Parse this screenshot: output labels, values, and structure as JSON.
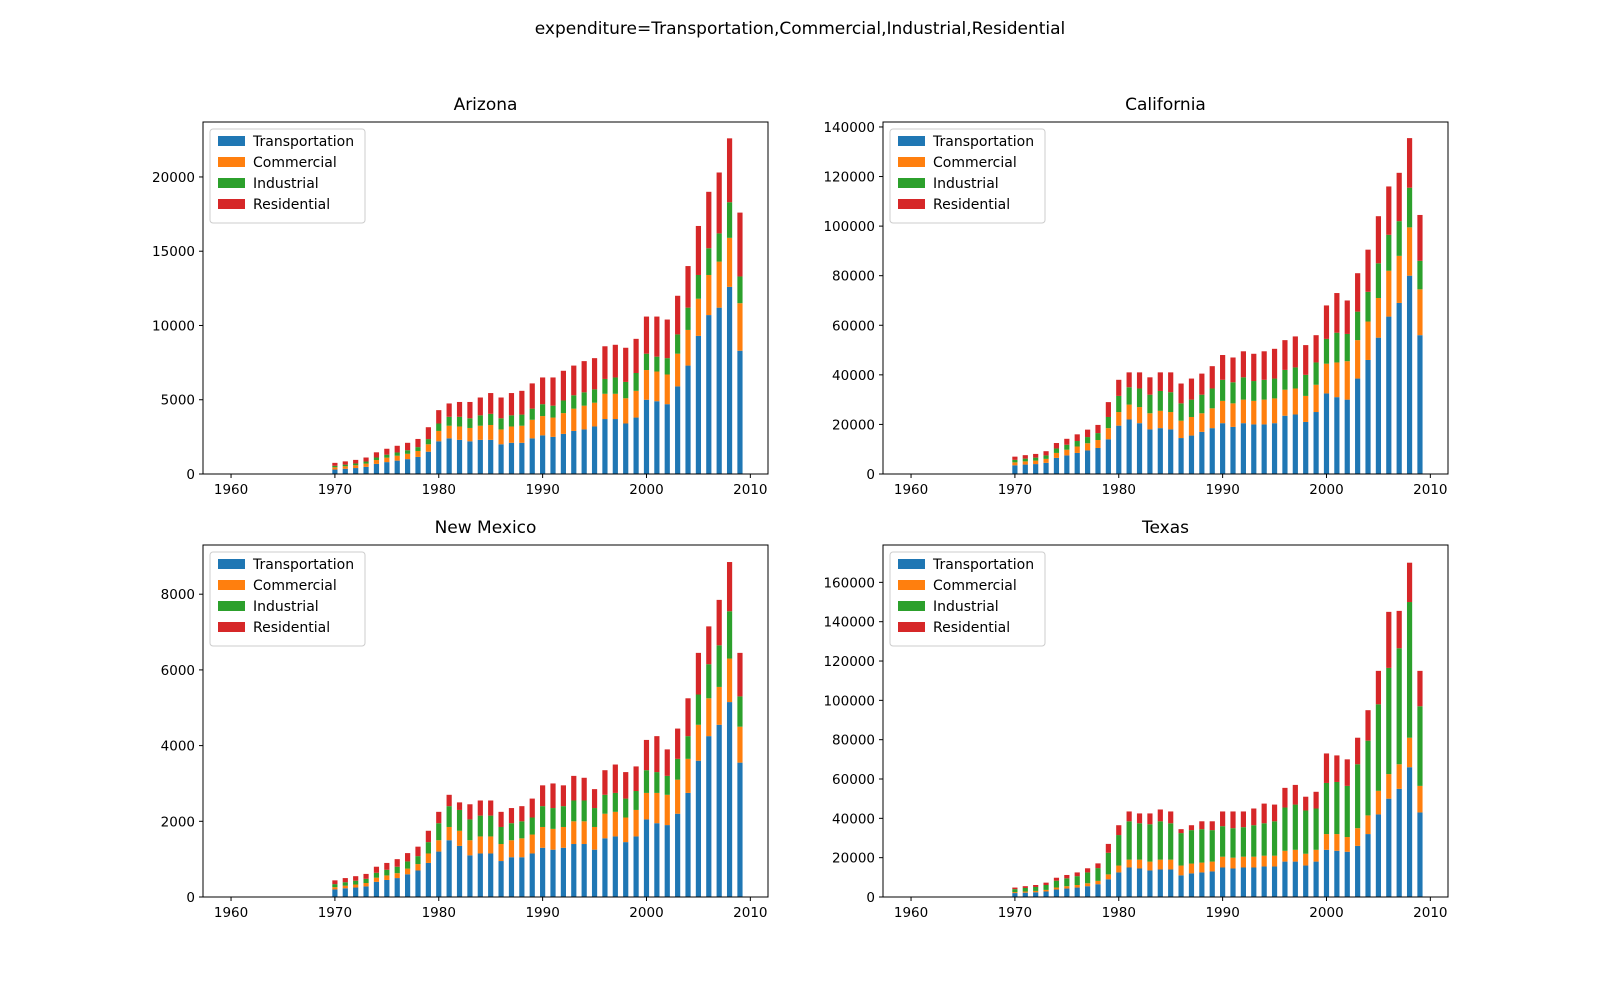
{
  "figure": {
    "title": "expenditure=Transportation,Commercial,Industrial,Residential"
  },
  "chart_data": [
    {
      "type": "bar",
      "stacked": true,
      "title": "Arizona",
      "xlabel": "",
      "ylabel": "",
      "xlim": [
        1957.3,
        2011.7
      ],
      "ylim": [
        0,
        23700
      ],
      "xticks": [
        1960,
        1970,
        1980,
        1990,
        2000,
        2010
      ],
      "yticks": [
        0,
        5000,
        10000,
        15000,
        20000
      ],
      "grid": false,
      "legend": "upper-left",
      "x": [
        1970,
        1971,
        1972,
        1973,
        1974,
        1975,
        1976,
        1977,
        1978,
        1979,
        1980,
        1981,
        1982,
        1983,
        1984,
        1985,
        1986,
        1987,
        1988,
        1989,
        1990,
        1991,
        1992,
        1993,
        1994,
        1995,
        1996,
        1997,
        1998,
        1999,
        2000,
        2001,
        2002,
        2003,
        2004,
        2005,
        2006,
        2007,
        2008,
        2009
      ],
      "series": [
        {
          "name": "Transportation",
          "color": "#1f77b4",
          "values": [
            300,
            350,
            400,
            480,
            680,
            800,
            900,
            1000,
            1150,
            1500,
            2200,
            2400,
            2300,
            2200,
            2300,
            2300,
            2000,
            2100,
            2100,
            2400,
            2600,
            2500,
            2700,
            2900,
            3000,
            3200,
            3700,
            3700,
            3400,
            3800,
            5000,
            4900,
            4700,
            5900,
            7300,
            9300,
            10700,
            11200,
            12600,
            8300
          ]
        },
        {
          "name": "Commercial",
          "color": "#ff7f0e",
          "values": [
            150,
            170,
            190,
            220,
            260,
            300,
            330,
            360,
            400,
            500,
            700,
            850,
            900,
            900,
            950,
            1000,
            1000,
            1100,
            1150,
            1250,
            1300,
            1300,
            1400,
            1500,
            1600,
            1600,
            1700,
            1700,
            1700,
            1800,
            2000,
            2000,
            2000,
            2200,
            2400,
            2500,
            2700,
            3100,
            3300,
            3200
          ]
        },
        {
          "name": "Industrial",
          "color": "#2ca02c",
          "values": [
            100,
            110,
            120,
            140,
            170,
            200,
            220,
            240,
            260,
            350,
            500,
            600,
            650,
            650,
            700,
            750,
            750,
            750,
            750,
            750,
            800,
            800,
            850,
            900,
            900,
            900,
            1000,
            1100,
            1100,
            1200,
            1100,
            1000,
            1100,
            1300,
            1500,
            1600,
            1800,
            1900,
            2400,
            1800
          ]
        },
        {
          "name": "Residential",
          "color": "#d62728",
          "values": [
            200,
            220,
            240,
            270,
            350,
            400,
            450,
            500,
            550,
            800,
            900,
            900,
            1000,
            1100,
            1200,
            1400,
            1400,
            1500,
            1600,
            1700,
            1800,
            1900,
            2000,
            2000,
            2100,
            2100,
            2200,
            2200,
            2300,
            2300,
            2500,
            2700,
            2600,
            2600,
            2800,
            3300,
            3800,
            4100,
            4300,
            4300
          ]
        }
      ]
    },
    {
      "type": "bar",
      "stacked": true,
      "title": "California",
      "xlabel": "",
      "ylabel": "",
      "xlim": [
        1957.3,
        2011.7
      ],
      "ylim": [
        0,
        142000
      ],
      "xticks": [
        1960,
        1970,
        1980,
        1990,
        2000,
        2010
      ],
      "yticks": [
        0,
        20000,
        40000,
        60000,
        80000,
        100000,
        120000,
        140000
      ],
      "grid": false,
      "legend": "upper-left",
      "x": [
        1970,
        1971,
        1972,
        1973,
        1974,
        1975,
        1976,
        1977,
        1978,
        1979,
        1980,
        1981,
        1982,
        1983,
        1984,
        1985,
        1986,
        1987,
        1988,
        1989,
        1990,
        1991,
        1992,
        1993,
        1994,
        1995,
        1996,
        1997,
        1998,
        1999,
        2000,
        2001,
        2002,
        2003,
        2004,
        2005,
        2006,
        2007,
        2008,
        2009
      ],
      "series": [
        {
          "name": "Transportation",
          "color": "#1f77b4",
          "values": [
            3500,
            3800,
            4000,
            4500,
            6500,
            7500,
            8500,
            9500,
            10500,
            14000,
            19500,
            22000,
            20500,
            18000,
            18500,
            18000,
            14500,
            15500,
            17000,
            18500,
            20500,
            19000,
            20500,
            20000,
            20000,
            20500,
            23500,
            24000,
            21000,
            25000,
            32500,
            31000,
            30000,
            38500,
            46000,
            55000,
            63500,
            69000,
            80000,
            56000
          ]
        },
        {
          "name": "Commercial",
          "color": "#ff7f0e",
          "values": [
            1200,
            1300,
            1400,
            1600,
            2000,
            2300,
            2600,
            2900,
            3200,
            4500,
            5500,
            6000,
            6500,
            6500,
            7000,
            7000,
            7000,
            7500,
            7500,
            8000,
            9000,
            9500,
            9500,
            9500,
            10000,
            10000,
            10500,
            10500,
            10500,
            11000,
            12000,
            14000,
            15500,
            15500,
            15500,
            16000,
            18500,
            19000,
            19500,
            18500
          ]
        },
        {
          "name": "Industrial",
          "color": "#2ca02c",
          "values": [
            1000,
            1100,
            1200,
            1400,
            1800,
            2000,
            2200,
            2500,
            2800,
            4500,
            6500,
            7000,
            7500,
            7500,
            8000,
            8000,
            7000,
            7000,
            7500,
            8000,
            8500,
            8500,
            9000,
            8000,
            8000,
            8000,
            8000,
            8500,
            8500,
            9000,
            10000,
            12000,
            11000,
            11500,
            12000,
            14000,
            14500,
            14000,
            16000,
            11500
          ]
        },
        {
          "name": "Residential",
          "color": "#d62728",
          "values": [
            1300,
            1400,
            1500,
            1700,
            2200,
            2400,
            2700,
            3000,
            3300,
            6000,
            6500,
            6000,
            6500,
            7000,
            7500,
            8000,
            8000,
            8500,
            8500,
            9000,
            10000,
            10000,
            10500,
            11000,
            11500,
            12000,
            12000,
            12500,
            12000,
            11000,
            13500,
            16000,
            13500,
            15500,
            17000,
            19000,
            19500,
            19500,
            20000,
            18500
          ]
        }
      ]
    },
    {
      "type": "bar",
      "stacked": true,
      "title": "New Mexico",
      "xlabel": "",
      "ylabel": "",
      "xlim": [
        1957.3,
        2011.7
      ],
      "ylim": [
        0,
        9300
      ],
      "xticks": [
        1960,
        1970,
        1980,
        1990,
        2000,
        2010
      ],
      "yticks": [
        0,
        2000,
        4000,
        6000,
        8000
      ],
      "grid": false,
      "legend": "upper-left",
      "x": [
        1970,
        1971,
        1972,
        1973,
        1974,
        1975,
        1976,
        1977,
        1978,
        1979,
        1980,
        1981,
        1982,
        1983,
        1984,
        1985,
        1986,
        1987,
        1988,
        1989,
        1990,
        1991,
        1992,
        1993,
        1994,
        1995,
        1996,
        1997,
        1998,
        1999,
        2000,
        2001,
        2002,
        2003,
        2004,
        2005,
        2006,
        2007,
        2008,
        2009
      ],
      "series": [
        {
          "name": "Transportation",
          "color": "#1f77b4",
          "values": [
            200,
            230,
            250,
            280,
            400,
            450,
            500,
            600,
            700,
            900,
            1200,
            1500,
            1350,
            1100,
            1150,
            1150,
            950,
            1050,
            1050,
            1150,
            1300,
            1250,
            1300,
            1400,
            1400,
            1250,
            1550,
            1600,
            1450,
            1600,
            2050,
            1950,
            1900,
            2200,
            2750,
            3600,
            4250,
            4550,
            5150,
            3550
          ]
        },
        {
          "name": "Commercial",
          "color": "#ff7f0e",
          "values": [
            60,
            70,
            80,
            90,
            110,
            120,
            130,
            150,
            170,
            250,
            300,
            350,
            400,
            400,
            450,
            450,
            450,
            450,
            500,
            500,
            550,
            550,
            550,
            600,
            600,
            600,
            650,
            650,
            650,
            700,
            700,
            800,
            800,
            900,
            900,
            950,
            1000,
            1000,
            1150,
            950
          ]
        },
        {
          "name": "Industrial",
          "color": "#2ca02c",
          "values": [
            80,
            90,
            100,
            110,
            130,
            150,
            170,
            190,
            210,
            300,
            450,
            550,
            550,
            550,
            550,
            550,
            450,
            450,
            450,
            450,
            550,
            550,
            550,
            550,
            550,
            500,
            500,
            500,
            500,
            500,
            600,
            550,
            500,
            550,
            600,
            800,
            900,
            1100,
            1250,
            800
          ]
        },
        {
          "name": "Residential",
          "color": "#d62728",
          "values": [
            100,
            110,
            120,
            130,
            160,
            180,
            200,
            220,
            250,
            300,
            300,
            300,
            200,
            400,
            400,
            400,
            400,
            400,
            400,
            500,
            550,
            650,
            550,
            650,
            600,
            500,
            650,
            750,
            700,
            650,
            800,
            950,
            700,
            800,
            1000,
            1100,
            1000,
            1200,
            1300,
            1150
          ]
        }
      ]
    },
    {
      "type": "bar",
      "stacked": true,
      "title": "Texas",
      "xlabel": "",
      "ylabel": "",
      "xlim": [
        1957.3,
        2011.7
      ],
      "ylim": [
        0,
        179000
      ],
      "xticks": [
        1960,
        1970,
        1980,
        1990,
        2000,
        2010
      ],
      "yticks": [
        0,
        20000,
        40000,
        60000,
        80000,
        100000,
        120000,
        140000,
        160000
      ],
      "grid": false,
      "legend": "upper-left",
      "x": [
        1970,
        1971,
        1972,
        1973,
        1974,
        1975,
        1976,
        1977,
        1978,
        1979,
        1980,
        1981,
        1982,
        1983,
        1984,
        1985,
        1986,
        1987,
        1988,
        1989,
        1990,
        1991,
        1992,
        1993,
        1994,
        1995,
        1996,
        1997,
        1998,
        1999,
        2000,
        2001,
        2002,
        2003,
        2004,
        2005,
        2006,
        2007,
        2008,
        2009
      ],
      "series": [
        {
          "name": "Transportation",
          "color": "#1f77b4",
          "values": [
            2000,
            2200,
            2400,
            2800,
            3800,
            4300,
            4800,
            5500,
            6500,
            9000,
            12500,
            15000,
            14500,
            13500,
            14000,
            14000,
            11000,
            12000,
            12500,
            13000,
            15000,
            14500,
            15000,
            15000,
            15500,
            15500,
            18000,
            18000,
            16000,
            18000,
            24000,
            23500,
            23000,
            26000,
            32000,
            42000,
            50000,
            55000,
            66000,
            43000
          ]
        },
        {
          "name": "Commercial",
          "color": "#ff7f0e",
          "values": [
            500,
            600,
            700,
            800,
            1000,
            1200,
            1300,
            1500,
            1700,
            2500,
            3500,
            4000,
            4500,
            4500,
            5000,
            5000,
            5000,
            5000,
            5000,
            5000,
            5500,
            5500,
            5500,
            5500,
            5500,
            5500,
            5500,
            6000,
            6000,
            6000,
            8000,
            8500,
            7500,
            9000,
            9500,
            12000,
            12500,
            12500,
            15000,
            13500
          ]
        },
        {
          "name": "Industrial",
          "color": "#2ca02c",
          "values": [
            1500,
            1800,
            2000,
            2500,
            3500,
            4000,
            4500,
            5500,
            6500,
            11000,
            15500,
            19500,
            18500,
            19000,
            19500,
            18500,
            16500,
            17000,
            17000,
            16000,
            15500,
            15000,
            15000,
            16000,
            16500,
            17500,
            22000,
            23000,
            22000,
            21000,
            26000,
            26500,
            26000,
            32500,
            38000,
            44000,
            54000,
            59000,
            69000,
            40500
          ]
        },
        {
          "name": "Residential",
          "color": "#d62728",
          "values": [
            800,
            900,
            1000,
            1200,
            1500,
            1700,
            1900,
            2100,
            2400,
            4500,
            5000,
            5000,
            5000,
            5500,
            6000,
            6000,
            2000,
            2500,
            4000,
            4500,
            7500,
            8500,
            8000,
            8500,
            10000,
            8500,
            10000,
            10000,
            7000,
            8500,
            15000,
            13500,
            13500,
            13500,
            15500,
            17000,
            28500,
            19000,
            20000,
            18000
          ]
        }
      ]
    }
  ]
}
